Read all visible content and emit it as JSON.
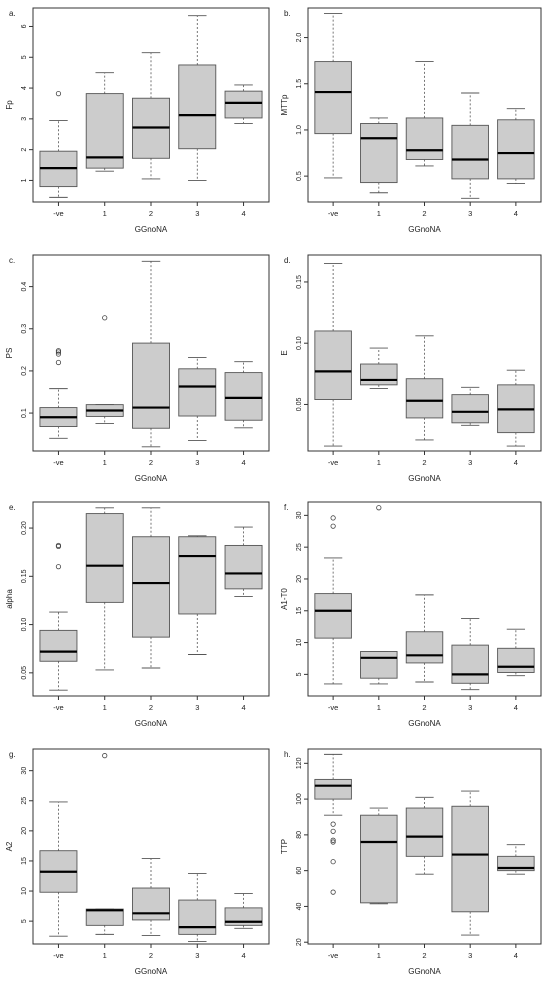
{
  "colors": {
    "box_fill": "#cccccc",
    "stroke": "#555555",
    "median": "#000000",
    "background": "#ffffff"
  },
  "chart_data": [
    {
      "panel": "a.",
      "type": "box",
      "xlabel": "GGnoNA",
      "ylabel": "Fp",
      "categories": [
        "-ve",
        "1",
        "2",
        "3",
        "4"
      ],
      "ylim": [
        0.3,
        6.6
      ],
      "yticks": [
        1,
        2,
        3,
        4,
        5,
        6
      ],
      "boxes": [
        {
          "min": 0.45,
          "q1": 0.8,
          "median": 1.4,
          "q3": 1.95,
          "max": 2.95,
          "outliers": [
            3.82
          ]
        },
        {
          "min": 1.3,
          "q1": 1.4,
          "median": 1.75,
          "q3": 3.82,
          "max": 4.5,
          "outliers": []
        },
        {
          "min": 1.05,
          "q1": 1.72,
          "median": 2.72,
          "q3": 3.67,
          "max": 5.15,
          "outliers": []
        },
        {
          "min": 1.0,
          "q1": 2.03,
          "median": 3.12,
          "q3": 4.75,
          "max": 6.35,
          "outliers": []
        },
        {
          "min": 2.85,
          "q1": 3.03,
          "median": 3.52,
          "q3": 3.9,
          "max": 4.1,
          "outliers": []
        }
      ]
    },
    {
      "panel": "b.",
      "type": "box",
      "xlabel": "",
      "ylabel": "MTTp",
      "categories": [
        "-ve",
        "1",
        "2",
        "3",
        "4"
      ],
      "ylim": [
        0.22,
        2.32
      ],
      "yticks": [
        0.5,
        1.0,
        1.5,
        2.0
      ],
      "boxes": [
        {
          "min": 0.48,
          "q1": 0.96,
          "median": 1.41,
          "q3": 1.74,
          "max": 2.26,
          "outliers": []
        },
        {
          "min": 0.32,
          "q1": 0.43,
          "median": 0.91,
          "q3": 1.07,
          "max": 1.13,
          "outliers": []
        },
        {
          "min": 0.61,
          "q1": 0.68,
          "median": 0.78,
          "q3": 1.13,
          "max": 1.74,
          "outliers": []
        },
        {
          "min": 0.26,
          "q1": 0.47,
          "median": 0.68,
          "q3": 1.05,
          "max": 1.4,
          "outliers": []
        },
        {
          "min": 0.42,
          "q1": 0.47,
          "median": 0.75,
          "q3": 1.11,
          "max": 1.23,
          "outliers": []
        }
      ]
    },
    {
      "panel": "c.",
      "type": "box",
      "xlabel": "",
      "ylabel": "PS",
      "categories": [
        "-ve",
        "1",
        "2",
        "3",
        "4"
      ],
      "ylim": [
        0.01,
        0.475
      ],
      "yticks": [
        0.1,
        0.2,
        0.3,
        0.4
      ],
      "boxes": [
        {
          "min": 0.04,
          "q1": 0.068,
          "median": 0.09,
          "q3": 0.113,
          "max": 0.158,
          "outliers": [
            0.22,
            0.24,
            0.245,
            0.248
          ]
        },
        {
          "min": 0.075,
          "q1": 0.092,
          "median": 0.106,
          "q3": 0.12,
          "max": 0.12,
          "outliers": [
            0.326
          ]
        },
        {
          "min": 0.02,
          "q1": 0.064,
          "median": 0.113,
          "q3": 0.266,
          "max": 0.46,
          "outliers": []
        },
        {
          "min": 0.035,
          "q1": 0.093,
          "median": 0.163,
          "q3": 0.205,
          "max": 0.232,
          "outliers": []
        },
        {
          "min": 0.065,
          "q1": 0.083,
          "median": 0.136,
          "q3": 0.196,
          "max": 0.222,
          "outliers": []
        }
      ]
    },
    {
      "panel": "d.",
      "type": "box",
      "xlabel": "GGnoNA",
      "ylabel": "E",
      "categories": [
        "-ve",
        "1",
        "2",
        "3",
        "4"
      ],
      "ylim": [
        0.012,
        0.172
      ],
      "yticks": [
        0.05,
        0.1,
        0.15
      ],
      "boxes": [
        {
          "min": 0.016,
          "q1": 0.054,
          "median": 0.077,
          "q3": 0.11,
          "max": 0.165,
          "outliers": []
        },
        {
          "min": 0.063,
          "q1": 0.066,
          "median": 0.07,
          "q3": 0.083,
          "max": 0.096,
          "outliers": []
        },
        {
          "min": 0.021,
          "q1": 0.039,
          "median": 0.053,
          "q3": 0.071,
          "max": 0.106,
          "outliers": []
        },
        {
          "min": 0.033,
          "q1": 0.035,
          "median": 0.044,
          "q3": 0.058,
          "max": 0.064,
          "outliers": []
        },
        {
          "min": 0.016,
          "q1": 0.027,
          "median": 0.046,
          "q3": 0.066,
          "max": 0.078,
          "outliers": []
        }
      ]
    },
    {
      "panel": "e.",
      "type": "box",
      "xlabel": "",
      "ylabel": "alpha",
      "categories": [
        "-ve",
        "1",
        "2",
        "3",
        "4"
      ],
      "ylim": [
        0.026,
        0.227
      ],
      "yticks": [
        0.05,
        0.1,
        0.15,
        0.2
      ],
      "boxes": [
        {
          "min": 0.032,
          "q1": 0.062,
          "median": 0.072,
          "q3": 0.094,
          "max": 0.113,
          "outliers": [
            0.16,
            0.181,
            0.182
          ]
        },
        {
          "min": 0.053,
          "q1": 0.123,
          "median": 0.161,
          "q3": 0.215,
          "max": 0.221,
          "outliers": []
        },
        {
          "min": 0.055,
          "q1": 0.087,
          "median": 0.143,
          "q3": 0.191,
          "max": 0.221,
          "outliers": []
        },
        {
          "min": 0.069,
          "q1": 0.111,
          "median": 0.171,
          "q3": 0.191,
          "max": 0.192,
          "outliers": []
        },
        {
          "min": 0.129,
          "q1": 0.137,
          "median": 0.153,
          "q3": 0.182,
          "max": 0.201,
          "outliers": []
        }
      ]
    },
    {
      "panel": "f.",
      "type": "box",
      "xlabel": "",
      "ylabel": "A1-T0",
      "categories": [
        "-ve",
        "1",
        "2",
        "3",
        "4"
      ],
      "ylim": [
        1.6,
        32.1
      ],
      "yticks": [
        5,
        10,
        15,
        20,
        25,
        30
      ],
      "boxes": [
        {
          "min": 3.5,
          "q1": 10.7,
          "median": 15.0,
          "q3": 17.7,
          "max": 23.3,
          "outliers": [
            28.3,
            29.6
          ]
        },
        {
          "min": 3.5,
          "q1": 4.4,
          "median": 7.6,
          "q3": 8.6,
          "max": 8.6,
          "outliers": [
            31.2
          ]
        },
        {
          "min": 3.8,
          "q1": 6.8,
          "median": 8.0,
          "q3": 11.7,
          "max": 17.5,
          "outliers": []
        },
        {
          "min": 2.6,
          "q1": 3.6,
          "median": 5.0,
          "q3": 9.6,
          "max": 13.8,
          "outliers": []
        },
        {
          "min": 4.8,
          "q1": 5.3,
          "median": 6.2,
          "q3": 9.1,
          "max": 12.1,
          "outliers": []
        }
      ]
    },
    {
      "panel": "g.",
      "type": "box",
      "xlabel": "GGnoNA",
      "ylabel": "A2",
      "categories": [
        "-ve",
        "1",
        "2",
        "3",
        "4"
      ],
      "ylim": [
        1.2,
        33.6
      ],
      "yticks": [
        5,
        10,
        15,
        20,
        25,
        30
      ],
      "boxes": [
        {
          "min": 2.5,
          "q1": 9.8,
          "median": 13.2,
          "q3": 16.7,
          "max": 24.8,
          "outliers": []
        },
        {
          "min": 2.8,
          "q1": 4.3,
          "median": 6.8,
          "q3": 7.0,
          "max": 7.0,
          "outliers": [
            32.5
          ]
        },
        {
          "min": 2.6,
          "q1": 5.2,
          "median": 6.3,
          "q3": 10.5,
          "max": 15.4,
          "outliers": []
        },
        {
          "min": 1.6,
          "q1": 2.8,
          "median": 4.0,
          "q3": 8.5,
          "max": 12.9,
          "outliers": []
        },
        {
          "min": 3.8,
          "q1": 4.3,
          "median": 4.9,
          "q3": 7.2,
          "max": 9.6,
          "outliers": []
        }
      ]
    },
    {
      "panel": "h.",
      "type": "box",
      "xlabel": "GGnoNA",
      "ylabel": "TTP",
      "categories": [
        "-ve",
        "1",
        "2",
        "3",
        "4"
      ],
      "ylim": [
        19,
        128
      ],
      "yticks": [
        20,
        40,
        60,
        80,
        100,
        120
      ],
      "boxes": [
        {
          "min": 91,
          "q1": 100,
          "median": 107.5,
          "q3": 111,
          "max": 125,
          "outliers": [
            48,
            65,
            76,
            77,
            82,
            86
          ]
        },
        {
          "min": 41.5,
          "q1": 42,
          "median": 76,
          "q3": 91,
          "max": 95,
          "outliers": []
        },
        {
          "min": 58,
          "q1": 68,
          "median": 79,
          "q3": 95,
          "max": 101,
          "outliers": []
        },
        {
          "min": 24,
          "q1": 37,
          "median": 69,
          "q3": 96,
          "max": 104.5,
          "outliers": []
        },
        {
          "min": 58,
          "q1": 60,
          "median": 61.5,
          "q3": 68,
          "max": 74.5,
          "outliers": []
        }
      ]
    }
  ]
}
